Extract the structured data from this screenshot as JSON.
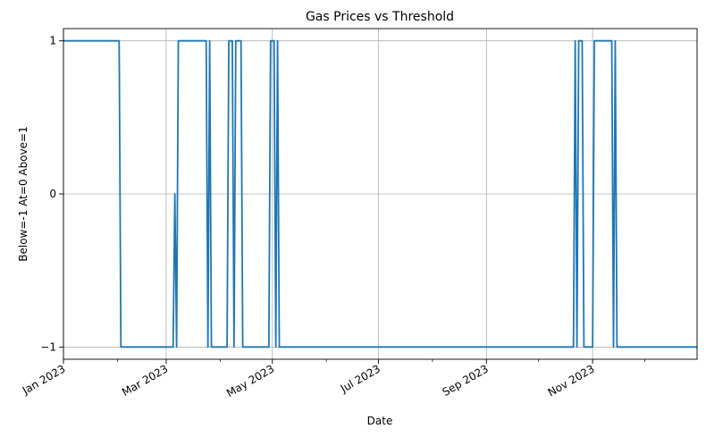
{
  "chart_data": {
    "type": "line",
    "title": "Gas Prices vs Threshold",
    "xlabel": "Date",
    "ylabel": "Below=-1  At=0  Above=1",
    "x_type": "date",
    "xlim": [
      "2023-01-01",
      "2023-12-31"
    ],
    "ylim": [
      -1.08,
      1.08
    ],
    "yticks": [
      -1,
      0,
      1
    ],
    "ytick_labels": [
      "−1",
      "0",
      "1"
    ],
    "xticks": [
      "2023-01-01",
      "2023-03-01",
      "2023-05-01",
      "2023-07-01",
      "2023-09-01",
      "2023-11-01"
    ],
    "xtick_labels": [
      "Jan 2023",
      "Mar 2023",
      "May 2023",
      "Jul 2023",
      "Sep 2023",
      "Nov 2023"
    ],
    "grid": true,
    "series": [
      {
        "color": "#1f77b4",
        "points": [
          [
            "2023-01-01",
            1
          ],
          [
            "2023-02-02",
            1
          ],
          [
            "2023-02-03",
            -1
          ],
          [
            "2023-03-05",
            -1
          ],
          [
            "2023-03-06",
            0
          ],
          [
            "2023-03-07",
            -1
          ],
          [
            "2023-03-08",
            1
          ],
          [
            "2023-03-24",
            1
          ],
          [
            "2023-03-25",
            -1
          ],
          [
            "2023-03-26",
            1
          ],
          [
            "2023-03-27",
            -1
          ],
          [
            "2023-04-05",
            -1
          ],
          [
            "2023-04-06",
            1
          ],
          [
            "2023-04-08",
            1
          ],
          [
            "2023-04-09",
            -1
          ],
          [
            "2023-04-10",
            1
          ],
          [
            "2023-04-13",
            1
          ],
          [
            "2023-04-14",
            -1
          ],
          [
            "2023-04-29",
            -1
          ],
          [
            "2023-04-30",
            1
          ],
          [
            "2023-05-02",
            1
          ],
          [
            "2023-05-03",
            -1
          ],
          [
            "2023-05-04",
            1
          ],
          [
            "2023-05-05",
            -1
          ],
          [
            "2023-10-21",
            -1
          ],
          [
            "2023-10-22",
            1
          ],
          [
            "2023-10-23",
            -1
          ],
          [
            "2023-10-24",
            1
          ],
          [
            "2023-10-26",
            1
          ],
          [
            "2023-10-27",
            -1
          ],
          [
            "2023-11-01",
            -1
          ],
          [
            "2023-11-02",
            1
          ],
          [
            "2023-11-12",
            1
          ],
          [
            "2023-11-13",
            -1
          ],
          [
            "2023-11-14",
            1
          ],
          [
            "2023-11-15",
            -1
          ],
          [
            "2023-12-31",
            -1
          ]
        ]
      }
    ]
  }
}
